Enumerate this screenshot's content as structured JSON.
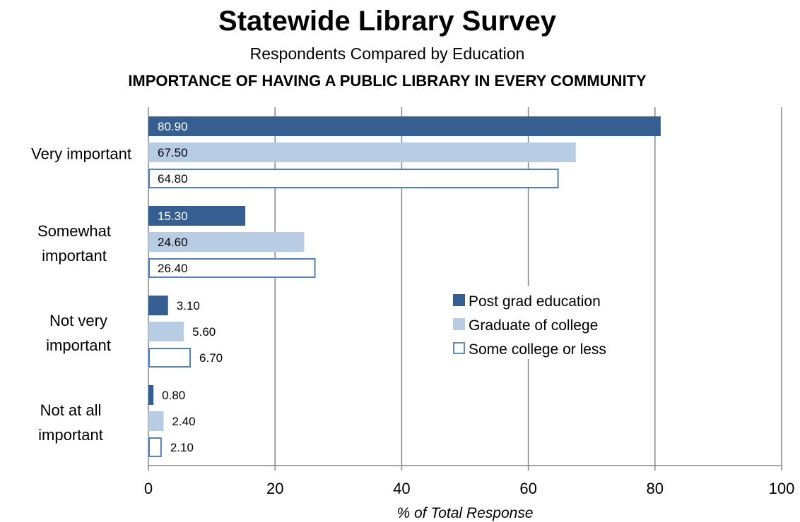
{
  "title": "Statewide Library Survey",
  "subtitle": "Respondents Compared by Education",
  "subtitle2": "IMPORTANCE OF HAVING A PUBLIC LIBRARY IN EVERY COMMUNITY",
  "chart_data": {
    "type": "bar",
    "orientation": "horizontal",
    "categories": [
      [
        "Very important"
      ],
      [
        "Somewhat",
        "important"
      ],
      [
        "Not very",
        "important"
      ],
      [
        "Not at all",
        "important"
      ]
    ],
    "series": [
      {
        "name": "Post grad education",
        "values": [
          80.9,
          15.3,
          3.1,
          0.8
        ],
        "color": "#365F91",
        "fill": "solid"
      },
      {
        "name": "Graduate of college",
        "values": [
          67.5,
          24.6,
          5.6,
          2.4
        ],
        "color": "#B8CCE4",
        "fill": "solid"
      },
      {
        "name": "Some college or less",
        "values": [
          64.8,
          26.4,
          6.7,
          2.1
        ],
        "color": "#4F81BD",
        "fill": "outline"
      }
    ],
    "data_labels": [
      [
        "80.90",
        "15.30",
        "3.10",
        "0.80"
      ],
      [
        "67.50",
        "24.60",
        "5.60",
        "2.40"
      ],
      [
        "64.80",
        "26.40",
        "6.70",
        "2.10"
      ]
    ],
    "xlim": [
      0,
      100
    ],
    "xticks": [
      0,
      20,
      40,
      60,
      80,
      100
    ],
    "xlabel": "% of Total Response",
    "grid": true,
    "legend_position": "center-right"
  }
}
